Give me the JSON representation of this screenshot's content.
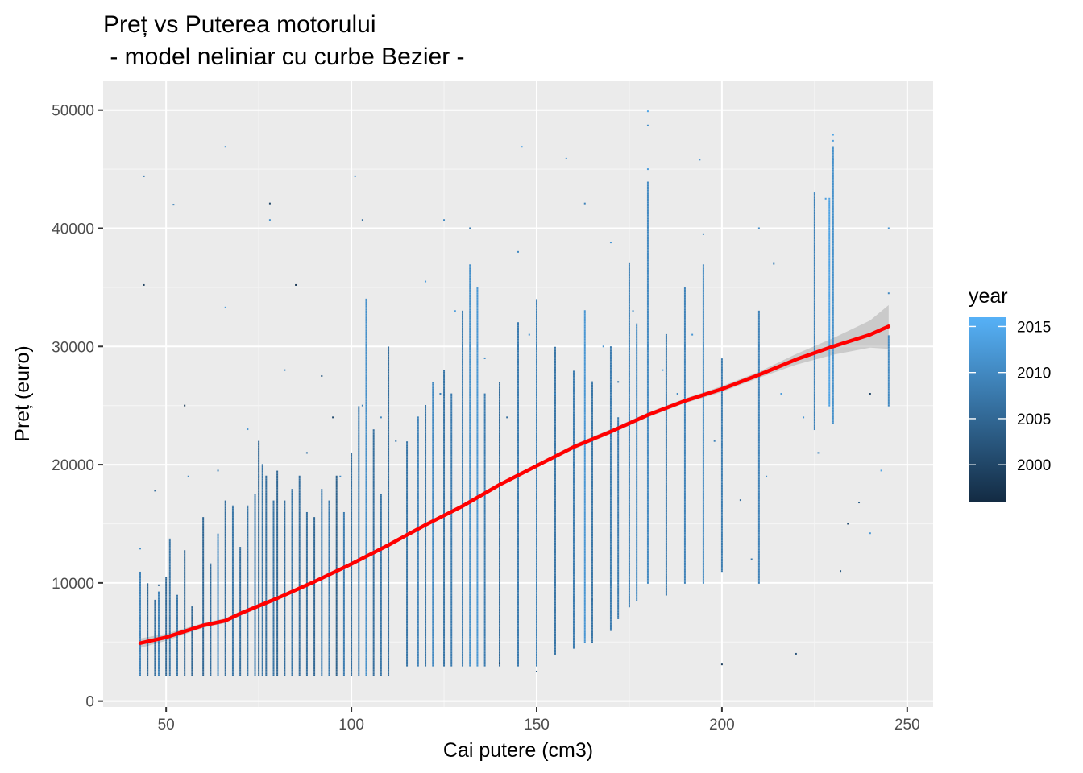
{
  "chart_data": {
    "type": "scatter",
    "title_line1": "Preț vs Puterea motorului",
    "title_line2": " - model neliniar cu curbe Bezier -",
    "xlabel": "Cai putere (cm3)",
    "ylabel": "Preț (euro)",
    "xlim": [
      33,
      257
    ],
    "ylim": [
      -500,
      52500
    ],
    "x_ticks": [
      50,
      100,
      150,
      200,
      250
    ],
    "y_ticks": [
      0,
      10000,
      20000,
      30000,
      40000,
      50000
    ],
    "x_tick_labels": [
      "50",
      "100",
      "150",
      "200",
      "250"
    ],
    "y_tick_labels": [
      "0",
      "10000",
      "20000",
      "30000",
      "40000",
      "50000"
    ],
    "grid": true,
    "legend": {
      "title": "year",
      "position": "right",
      "range": [
        1996,
        2016
      ],
      "breaks": [
        2000,
        2005,
        2010,
        2015
      ],
      "labels": [
        "2000",
        "2005",
        "2010",
        "2015"
      ],
      "color_low": "#132B43",
      "color_high": "#56B1F7"
    },
    "series": [
      {
        "name": "smooth",
        "color": "#ff0000",
        "x": [
          43,
          50,
          60,
          66,
          70,
          80,
          90,
          100,
          110,
          120,
          130,
          140,
          150,
          160,
          170,
          180,
          190,
          200,
          210,
          220,
          230,
          240,
          245
        ],
        "y": [
          4900,
          5400,
          6400,
          6800,
          7400,
          8700,
          10100,
          11600,
          13200,
          14900,
          16500,
          18300,
          19900,
          21500,
          22800,
          24200,
          25400,
          26400,
          27600,
          28900,
          30000,
          31000,
          31700
        ],
        "ci_low": [
          4500,
          5100,
          6200,
          6600,
          7200,
          8550,
          9950,
          11450,
          13050,
          14750,
          16350,
          18150,
          19750,
          21300,
          22600,
          24000,
          25200,
          26150,
          27350,
          28450,
          29300,
          29900,
          29800
        ],
        "ci_high": [
          5300,
          5700,
          6600,
          7000,
          7600,
          8850,
          10250,
          11750,
          13350,
          15050,
          16650,
          18450,
          20050,
          21700,
          23000,
          24400,
          25600,
          26650,
          27850,
          29350,
          30700,
          32200,
          33500
        ]
      }
    ],
    "points": [
      [
        44,
        44400,
        2008
      ],
      [
        44,
        35200,
        1999
      ],
      [
        52,
        42000,
        2009
      ],
      [
        66,
        46900,
        2012
      ],
      [
        66,
        33300,
        2013
      ],
      [
        78,
        42100,
        2000
      ],
      [
        78,
        40700,
        2011
      ],
      [
        85,
        35200,
        1998
      ],
      [
        101,
        44400,
        2012
      ],
      [
        103,
        40700,
        2006
      ],
      [
        125,
        40700,
        2010
      ],
      [
        146,
        46900,
        2014
      ],
      [
        158,
        45900,
        2012
      ],
      [
        163,
        42100,
        2009
      ],
      [
        180,
        49900,
        2014
      ],
      [
        180,
        48700,
        2011
      ],
      [
        180,
        45000,
        2013
      ],
      [
        194,
        45800,
        2012
      ],
      [
        230,
        47900,
        2014
      ],
      [
        230,
        47400,
        2013
      ],
      [
        230,
        45800,
        2011
      ],
      [
        245,
        40000,
        2012
      ],
      [
        245,
        34500,
        2010
      ],
      [
        210,
        40000,
        2011
      ],
      [
        214,
        37000,
        2009
      ],
      [
        55,
        25000,
        1998
      ],
      [
        47,
        17800,
        2006
      ],
      [
        92,
        27500,
        2003
      ],
      [
        103,
        25000,
        2009
      ],
      [
        120,
        35500,
        2013
      ],
      [
        132,
        40000,
        2008
      ],
      [
        145,
        38000,
        2010
      ],
      [
        170,
        38800,
        2012
      ],
      [
        195,
        39500,
        2010
      ],
      [
        225,
        43000,
        2011
      ],
      [
        228,
        42500,
        2013
      ],
      [
        240,
        26000,
        2000
      ],
      [
        240,
        14200,
        2012
      ],
      [
        234,
        15000,
        2001
      ],
      [
        237,
        16800,
        2004
      ],
      [
        220,
        4000,
        2002
      ],
      [
        200,
        3100,
        1999
      ],
      [
        165,
        8600,
        2006
      ],
      [
        150,
        2500,
        2003
      ],
      [
        140,
        3200,
        1999
      ],
      [
        43,
        12900,
        2011
      ],
      [
        48,
        9800,
        2005
      ],
      [
        56,
        19000,
        2010
      ],
      [
        64,
        19500,
        2009
      ],
      [
        72,
        23000,
        2012
      ],
      [
        75,
        19000,
        2008
      ],
      [
        82,
        28000,
        2010
      ],
      [
        88,
        21000,
        2007
      ],
      [
        95,
        24000,
        2001
      ],
      [
        97,
        19000,
        2011
      ],
      [
        108,
        24000,
        2010
      ],
      [
        112,
        22000,
        2008
      ],
      [
        118,
        20000,
        2012
      ],
      [
        124,
        26000,
        2009
      ],
      [
        128,
        33000,
        2013
      ],
      [
        136,
        29000,
        2011
      ],
      [
        142,
        24000,
        2006
      ],
      [
        148,
        31000,
        2012
      ],
      [
        155,
        26000,
        2010
      ],
      [
        160,
        23000,
        2008
      ],
      [
        168,
        30000,
        2012
      ],
      [
        172,
        27000,
        2007
      ],
      [
        176,
        33000,
        2011
      ],
      [
        184,
        28000,
        2013
      ],
      [
        188,
        26000,
        2010
      ],
      [
        192,
        31000,
        2012
      ],
      [
        198,
        22000,
        2009
      ],
      [
        205,
        17000,
        2006
      ],
      [
        208,
        12000,
        2008
      ],
      [
        212,
        19000,
        2011
      ],
      [
        216,
        26000,
        2013
      ],
      [
        222,
        24000,
        2012
      ],
      [
        226,
        21000,
        2010
      ],
      [
        232,
        11000,
        2003
      ],
      [
        243,
        19500,
        2014
      ]
    ],
    "columns": [
      [
        43,
        2200,
        11000,
        2008
      ],
      [
        45,
        2200,
        10000,
        2007
      ],
      [
        47,
        2200,
        8500,
        2006
      ],
      [
        48,
        2200,
        9200,
        2008
      ],
      [
        50,
        2200,
        10500,
        2007
      ],
      [
        51,
        2200,
        13700,
        2008
      ],
      [
        53,
        2200,
        9000,
        2006
      ],
      [
        55,
        2200,
        12800,
        2007
      ],
      [
        57,
        2200,
        8000,
        2005
      ],
      [
        60,
        2200,
        15500,
        2007
      ],
      [
        62,
        2200,
        11700,
        2006
      ],
      [
        64,
        2200,
        14200,
        2008
      ],
      [
        66,
        2200,
        17000,
        2007
      ],
      [
        68,
        2200,
        16500,
        2006
      ],
      [
        70,
        2200,
        13000,
        2008
      ],
      [
        72,
        2200,
        16500,
        2007
      ],
      [
        74,
        2200,
        17500,
        2006
      ],
      [
        75,
        2200,
        22000,
        2007
      ],
      [
        76,
        2200,
        20000,
        2008
      ],
      [
        77,
        2200,
        19000,
        2006
      ],
      [
        79,
        2200,
        17000,
        2005
      ],
      [
        80,
        2200,
        19500,
        2007
      ],
      [
        82,
        2200,
        17000,
        2006
      ],
      [
        84,
        2200,
        18000,
        2005
      ],
      [
        86,
        2200,
        19000,
        2007
      ],
      [
        88,
        2200,
        16000,
        2005
      ],
      [
        90,
        2200,
        15500,
        2007
      ],
      [
        92,
        2200,
        18000,
        2008
      ],
      [
        94,
        2200,
        17000,
        2006
      ],
      [
        96,
        2200,
        19000,
        2005
      ],
      [
        98,
        2200,
        16000,
        2007
      ],
      [
        100,
        2200,
        21000,
        2008
      ],
      [
        102,
        2200,
        25000,
        2008
      ],
      [
        104,
        2200,
        34000,
        2009
      ],
      [
        106,
        2200,
        23000,
        2007
      ],
      [
        108,
        2200,
        17500,
        2006
      ],
      [
        110,
        2200,
        30000,
        2008
      ],
      [
        115,
        3000,
        22000,
        2009
      ],
      [
        118,
        3000,
        24000,
        2008
      ],
      [
        120,
        3000,
        25000,
        2009
      ],
      [
        122,
        3000,
        27000,
        2010
      ],
      [
        125,
        3000,
        28000,
        2009
      ],
      [
        127,
        3000,
        26000,
        2008
      ],
      [
        130,
        3000,
        33000,
        2010
      ],
      [
        132,
        3000,
        37000,
        2011
      ],
      [
        134,
        3000,
        35000,
        2010
      ],
      [
        136,
        3000,
        26000,
        2009
      ],
      [
        140,
        3000,
        27000,
        2008
      ],
      [
        145,
        3000,
        32000,
        2010
      ],
      [
        150,
        3000,
        34000,
        2011
      ],
      [
        155,
        4000,
        30000,
        2009
      ],
      [
        160,
        4500,
        28000,
        2010
      ],
      [
        163,
        5000,
        33000,
        2011
      ],
      [
        165,
        5000,
        27000,
        2009
      ],
      [
        170,
        6000,
        30000,
        2010
      ],
      [
        172,
        7000,
        24000,
        2008
      ],
      [
        175,
        8000,
        37000,
        2011
      ],
      [
        177,
        8500,
        32000,
        2010
      ],
      [
        180,
        10000,
        44000,
        2012
      ],
      [
        185,
        9000,
        31000,
        2010
      ],
      [
        190,
        10000,
        35000,
        2011
      ],
      [
        195,
        10000,
        37000,
        2012
      ],
      [
        200,
        11000,
        29000,
        2010
      ],
      [
        210,
        10000,
        33000,
        2011
      ],
      [
        225,
        23000,
        43000,
        2011
      ],
      [
        229,
        25000,
        42500,
        2012
      ],
      [
        230,
        23500,
        47000,
        2013
      ],
      [
        245,
        25000,
        31000,
        2012
      ]
    ]
  }
}
